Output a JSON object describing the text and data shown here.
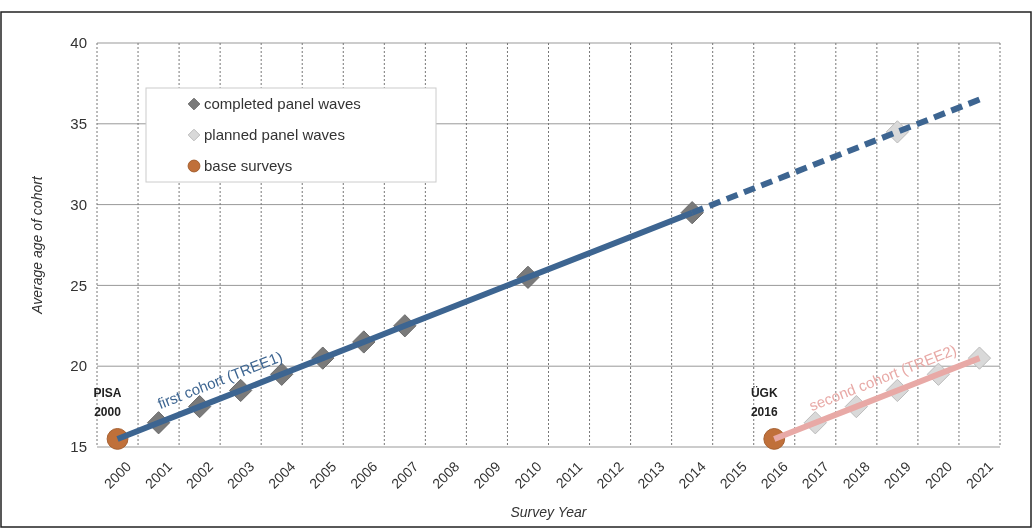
{
  "chart_data": {
    "type": "line",
    "xlabel": "Survey Year",
    "ylabel": "Average age of cohort",
    "xlim": [
      1999.5,
      2021.5
    ],
    "xticks": [
      2000,
      2001,
      2002,
      2003,
      2004,
      2005,
      2006,
      2007,
      2008,
      2009,
      2010,
      2011,
      2012,
      2013,
      2014,
      2015,
      2016,
      2017,
      2018,
      2019,
      2020,
      2021
    ],
    "ylim": [
      15,
      40
    ],
    "yticks": [
      15,
      20,
      25,
      30,
      35,
      40
    ],
    "grid": true,
    "legend": "top left",
    "series": [
      {
        "name": "first cohort (TREE1)",
        "color": "#3d6591",
        "line_style": "solid",
        "x": [
          2000,
          2001,
          2002,
          2003,
          2004,
          2005,
          2006,
          2007,
          2010,
          2014
        ],
        "values": [
          15.5,
          16.5,
          17.5,
          18.5,
          19.5,
          20.5,
          21.5,
          22.5,
          25.5,
          29.5
        ]
      },
      {
        "color": "#3d6591",
        "line_style": "dashed",
        "x": [
          2014,
          2019,
          2021
        ],
        "values": [
          29.5,
          34.5,
          36.5
        ]
      },
      {
        "name": "second cohort (TREE2)",
        "color": "#e8a9a6",
        "line_style": "solid",
        "x": [
          2016,
          2017,
          2018,
          2019,
          2020,
          2021
        ],
        "values": [
          15.5,
          16.5,
          17.5,
          18.5,
          19.5,
          20.5
        ]
      },
      {
        "name": "completed panel waves",
        "type": "scatter",
        "color": "#7a7a7a",
        "marker": "diamond",
        "x": [
          2001,
          2002,
          2003,
          2004,
          2005,
          2006,
          2007,
          2010,
          2014
        ],
        "values": [
          16.5,
          17.5,
          18.5,
          19.5,
          20.5,
          21.5,
          22.5,
          25.5,
          29.5
        ]
      },
      {
        "name": "planned panel waves",
        "type": "scatter",
        "color": "#d9d9d9",
        "marker": "diamond",
        "x": [
          2019,
          2017,
          2018,
          2019,
          2020,
          2021
        ],
        "values": [
          34.5,
          16.5,
          17.5,
          18.5,
          19.5,
          20.5
        ]
      },
      {
        "name": "base surveys",
        "type": "scatter",
        "color": "#c0703a",
        "marker": "circle",
        "x": [
          2000,
          2016
        ],
        "values": [
          15.5,
          15.5
        ]
      }
    ],
    "annotations": [
      {
        "text": "PISA 2000",
        "x": 2000,
        "y": 15.5
      },
      {
        "text": "ÜGK 2016",
        "x": 2016,
        "y": 15.5
      }
    ]
  }
}
